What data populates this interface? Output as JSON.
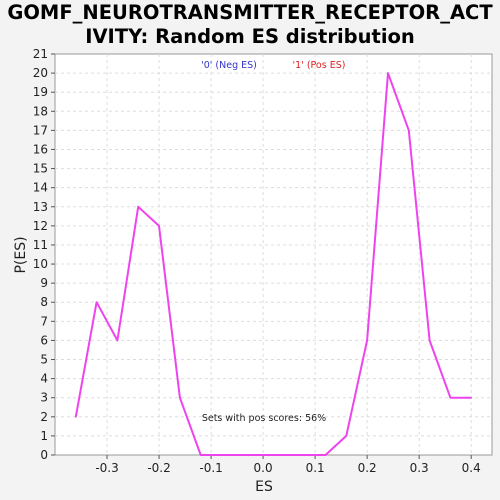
{
  "chart_data": {
    "type": "line",
    "title_lines": [
      "GOMF_NEUROTRANSMITTER_RECEPTOR_ACT",
      "IVITY: Random ES distribution"
    ],
    "xlabel": "ES",
    "ylabel": "P(ES)",
    "xlim": [
      -0.4,
      0.44
    ],
    "ylim": [
      0,
      21
    ],
    "x_ticks": [
      -0.3,
      -0.2,
      -0.1,
      0.0,
      0.1,
      0.2,
      0.3,
      0.4
    ],
    "x_tick_labels": [
      "-0.3",
      "-0.2",
      "-0.1",
      "0.0",
      "0.1",
      "0.2",
      "0.3",
      "0.4"
    ],
    "y_ticks": [
      0,
      1,
      2,
      3,
      4,
      5,
      6,
      7,
      8,
      9,
      10,
      11,
      12,
      13,
      14,
      15,
      16,
      17,
      18,
      19,
      20,
      21
    ],
    "grid": true,
    "legend_position": "top-center",
    "legend": [
      {
        "label": "'0' (Neg ES)",
        "color": "#3333cc"
      },
      {
        "label": "'1' (Pos ES)",
        "color": "#dd2222"
      }
    ],
    "annotation": "Sets with pos scores: 56%",
    "series": [
      {
        "color": "#ee44ee",
        "x": [
          -0.36,
          -0.32,
          -0.28,
          -0.24,
          -0.2,
          -0.16,
          -0.12,
          -0.08,
          -0.04,
          0.0,
          0.04,
          0.08,
          0.12,
          0.16,
          0.2,
          0.24,
          0.28,
          0.32,
          0.36,
          0.4
        ],
        "y": [
          2,
          8,
          6,
          13,
          12,
          3,
          0,
          0,
          0,
          0,
          0,
          0,
          0,
          1,
          6,
          20,
          17,
          6,
          3,
          3
        ]
      }
    ]
  }
}
